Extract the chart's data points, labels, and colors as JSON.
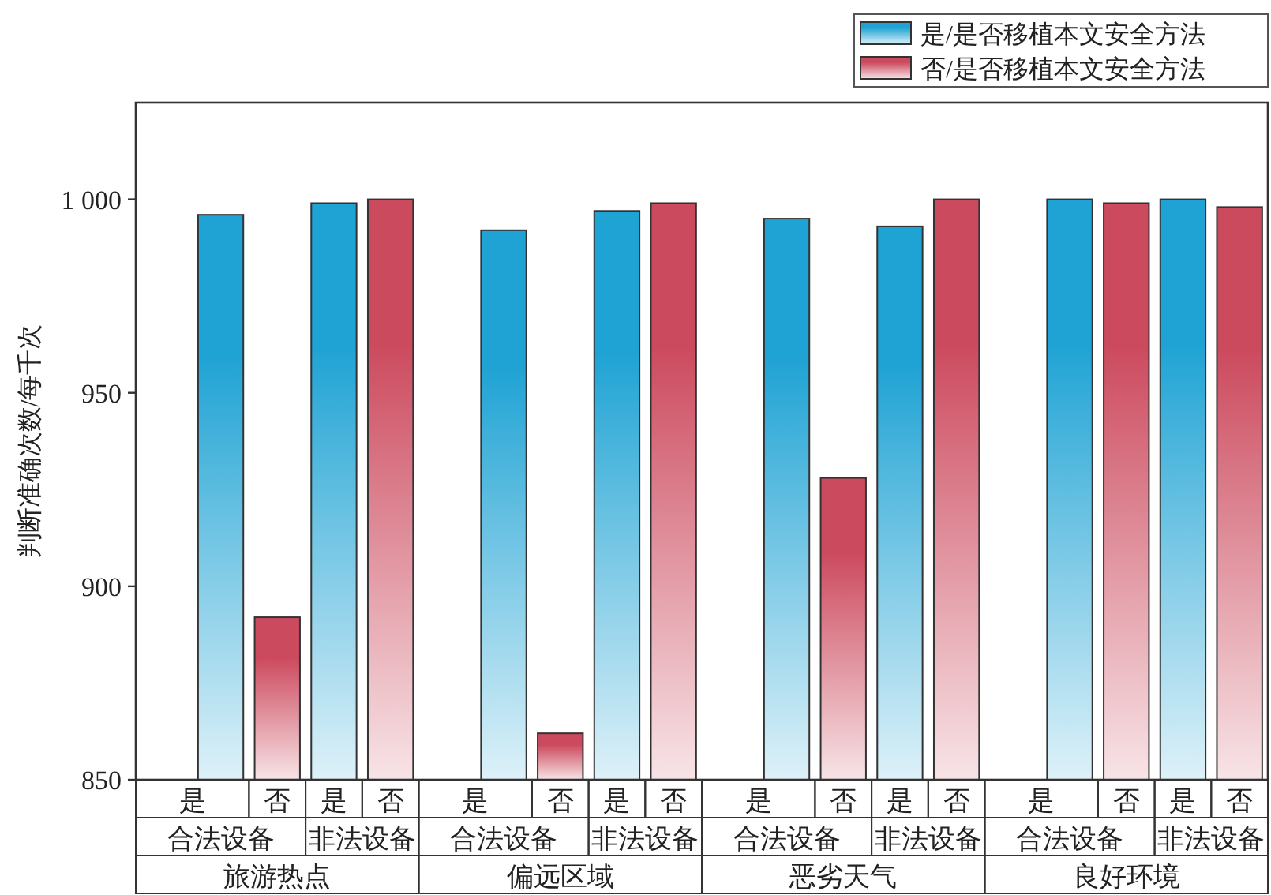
{
  "chart_data": {
    "type": "bar",
    "categories": [
      "是",
      "否",
      "是",
      "否",
      "是",
      "否",
      "是",
      "否",
      "是",
      "否",
      "是",
      "否",
      "是",
      "否",
      "是",
      "否"
    ],
    "series": [
      {
        "name": "是/是否移植本文安全方法",
        "color": "#1fa3d4",
        "values": [
          996,
          null,
          999,
          null,
          992,
          null,
          997,
          null,
          995,
          null,
          993,
          null,
          1000,
          null,
          1000,
          null
        ]
      },
      {
        "name": "否/是否移植本文安全方法",
        "color": "#cc4a5e",
        "values": [
          null,
          892,
          null,
          1000,
          null,
          862,
          null,
          999,
          null,
          928,
          null,
          1000,
          null,
          999,
          null,
          998
        ]
      }
    ],
    "ylabel": "判断准确次数/每千次",
    "ylim": [
      850,
      1025
    ],
    "yticks": [
      850,
      900,
      950,
      {
        "value": 1000,
        "label": "1 000"
      }
    ],
    "annotations": [
      "合法设备",
      "非法设备",
      "合法设备",
      "非法设备",
      "合法设备",
      "非法设备",
      "合法设备",
      "非法设备",
      "旅游热点",
      "偏远区域",
      "恶劣天气",
      "良好环境"
    ],
    "legend": "top right",
    "grid": false
  }
}
